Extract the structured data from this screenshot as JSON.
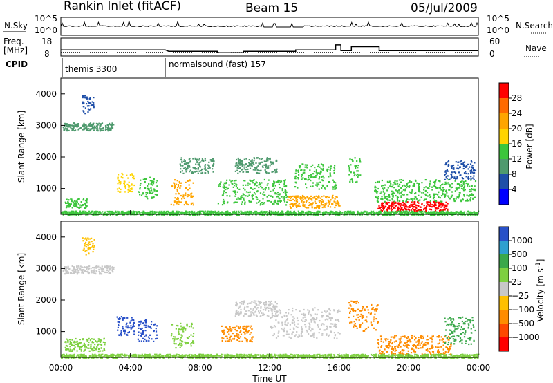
{
  "header": {
    "station": "Rankin Inlet (fitACF)",
    "beam": "Beam 15",
    "date": "05/Jul/2009"
  },
  "panel_labels": {
    "nsky": "N.Sky",
    "nsearch": "N.Search",
    "freq_line1": "Freq.",
    "freq_line2": "[MHz]",
    "nave": "Nave",
    "cpid": "CPID"
  },
  "cpid_segments": [
    {
      "label": "themis 3300",
      "start_hour": 0
    },
    {
      "label": "normalsound (fast) 157",
      "start_hour": 6
    }
  ],
  "colors": {
    "scale": [
      "#ff0000",
      "#ff6a00",
      "#ffa500",
      "#ffd400",
      "#3cc63c",
      "#4f9a6e",
      "#1f4fa8",
      "#0000ff"
    ],
    "velocity": [
      "#2850c8",
      "#2ea0d0",
      "#3aa84a",
      "#7ed040",
      "#c8c8c8",
      "#ffc000",
      "#ff8c00",
      "#ff4800",
      "#ff0000"
    ]
  },
  "chart_data": [
    {
      "type": "line",
      "name": "sky-noise",
      "ylabel": "N.Sky",
      "y_ticks_left": [
        "10^5",
        "10^0"
      ],
      "right_label": "N.Search",
      "y_ticks_right": [
        "10^5",
        "10^0"
      ]
    },
    {
      "type": "line",
      "name": "frequency-nave",
      "ylabel": "Freq. [MHz]",
      "y_ticks_left": [
        "18",
        "8"
      ],
      "right_label": "Nave",
      "y_ticks_right": [
        "60",
        "0"
      ],
      "freq_steps": [
        [
          0,
          11.4
        ],
        [
          6,
          11.4
        ],
        [
          6.2,
          10.6
        ],
        [
          9,
          10.6
        ],
        [
          9,
          9.8
        ],
        [
          10.5,
          9.8
        ],
        [
          10.5,
          10.6
        ],
        [
          13.5,
          10.6
        ],
        [
          13.5,
          11.4
        ],
        [
          15.8,
          11.4
        ],
        [
          15.8,
          14.2
        ],
        [
          16.1,
          14.2
        ],
        [
          16.1,
          11.0
        ],
        [
          16.7,
          11.0
        ],
        [
          16.7,
          13.2
        ],
        [
          18.3,
          13.2
        ],
        [
          18.3,
          11.0
        ],
        [
          24,
          11.0
        ]
      ],
      "nave_level": 12
    },
    {
      "type": "heatmap",
      "name": "power",
      "xlabel": "",
      "ylabel": "Slant Range [km]",
      "x_ticks": [
        "00:00",
        "04:00",
        "08:00",
        "12:00",
        "16:00",
        "20:00",
        "00:00"
      ],
      "y_ticks": [
        1000,
        2000,
        3000,
        4000
      ],
      "ylim": [
        180,
        4500
      ],
      "colorbar_label": "Power [dB]",
      "colorbar_ticks": [
        28,
        24,
        20,
        16,
        12,
        8,
        4
      ],
      "regions": [
        {
          "t0": 0.1,
          "t1": 3.0,
          "r0": 2850,
          "r1": 3100,
          "level": 10
        },
        {
          "t0": 1.2,
          "t1": 1.9,
          "r0": 3400,
          "r1": 4000,
          "level": 6
        },
        {
          "t0": 0.2,
          "t1": 1.5,
          "r0": 400,
          "r1": 700,
          "level": 14
        },
        {
          "t0": 3.2,
          "t1": 4.2,
          "r0": 900,
          "r1": 1500,
          "level": 18
        },
        {
          "t0": 4.4,
          "t1": 5.5,
          "r0": 700,
          "r1": 1400,
          "level": 14
        },
        {
          "t0": 6.3,
          "t1": 7.6,
          "r0": 500,
          "r1": 1300,
          "level": 20
        },
        {
          "t0": 6.8,
          "t1": 8.8,
          "r0": 1500,
          "r1": 2000,
          "level": 8
        },
        {
          "t0": 10.0,
          "t1": 12.4,
          "r0": 1500,
          "r1": 2000,
          "level": 8
        },
        {
          "t0": 9.0,
          "t1": 13.0,
          "r0": 500,
          "r1": 1300,
          "level": 12
        },
        {
          "t0": 13.4,
          "t1": 15.8,
          "r0": 1000,
          "r1": 1800,
          "level": 12
        },
        {
          "t0": 13.0,
          "t1": 16.0,
          "r0": 400,
          "r1": 800,
          "level": 22
        },
        {
          "t0": 16.5,
          "t1": 17.2,
          "r0": 1200,
          "r1": 2000,
          "level": 14
        },
        {
          "t0": 18.2,
          "t1": 22.2,
          "r0": 300,
          "r1": 600,
          "level": 28
        },
        {
          "t0": 18.0,
          "t1": 23.8,
          "r0": 600,
          "r1": 1300,
          "level": 14
        },
        {
          "t0": 22.0,
          "t1": 23.8,
          "r0": 1300,
          "r1": 1900,
          "level": 6
        },
        {
          "t0": 0.0,
          "t1": 24.0,
          "r0": 180,
          "r1": 300,
          "level": 12
        }
      ]
    },
    {
      "type": "heatmap",
      "name": "velocity",
      "xlabel": "Time UT",
      "ylabel": "Slant Range [km]",
      "x_ticks": [
        "00:00",
        "04:00",
        "08:00",
        "12:00",
        "16:00",
        "20:00",
        "00:00"
      ],
      "y_ticks": [
        1000,
        2000,
        3000,
        4000
      ],
      "ylim": [
        180,
        4500
      ],
      "colorbar_label": "Velocity [m s",
      "colorbar_label_sup": "-1",
      "colorbar_ticks": [
        "1000",
        "500",
        "100",
        "25",
        "−25",
        "−100",
        "−500",
        "−1000"
      ],
      "regions": [
        {
          "t0": 0.1,
          "t1": 3.0,
          "r0": 2850,
          "r1": 3100,
          "level": 4
        },
        {
          "t0": 1.2,
          "t1": 1.9,
          "r0": 3400,
          "r1": 4000,
          "level": 5
        },
        {
          "t0": 0.2,
          "t1": 2.5,
          "r0": 400,
          "r1": 800,
          "level": 3
        },
        {
          "t0": 3.2,
          "t1": 4.2,
          "r0": 900,
          "r1": 1500,
          "level": 0
        },
        {
          "t0": 4.4,
          "t1": 5.5,
          "r0": 700,
          "r1": 1400,
          "level": 0
        },
        {
          "t0": 6.3,
          "t1": 7.6,
          "r0": 500,
          "r1": 1300,
          "level": 3
        },
        {
          "t0": 9.2,
          "t1": 11.0,
          "r0": 700,
          "r1": 1200,
          "level": 6
        },
        {
          "t0": 10.0,
          "t1": 12.4,
          "r0": 1500,
          "r1": 2000,
          "level": 4
        },
        {
          "t0": 12.0,
          "t1": 16.0,
          "r0": 800,
          "r1": 1800,
          "level": 4
        },
        {
          "t0": 16.5,
          "t1": 18.2,
          "r0": 1000,
          "r1": 2000,
          "level": 6
        },
        {
          "t0": 18.2,
          "t1": 22.4,
          "r0": 300,
          "r1": 900,
          "level": 6
        },
        {
          "t0": 22.0,
          "t1": 23.8,
          "r0": 600,
          "r1": 1500,
          "level": 2
        },
        {
          "t0": 0.0,
          "t1": 24.0,
          "r0": 180,
          "r1": 300,
          "level": 3
        }
      ]
    }
  ]
}
